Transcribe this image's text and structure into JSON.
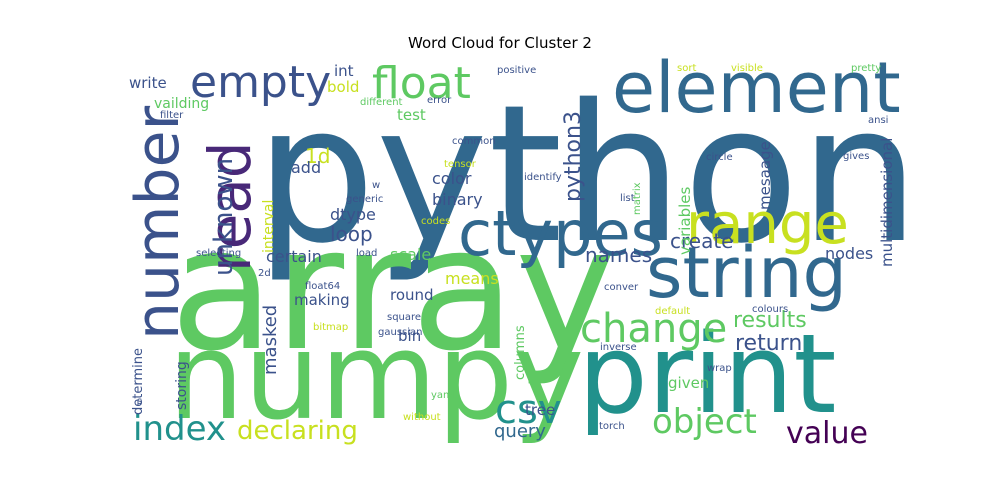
{
  "title": "Word Cloud for Cluster 2",
  "words": [
    {
      "text": "python",
      "size": 190,
      "color": "#31688e"
    },
    {
      "text": "array",
      "size": 170,
      "color": "#5ec962"
    },
    {
      "text": "numpy",
      "size": 120,
      "color": "#5ec962"
    },
    {
      "text": "print",
      "size": 110,
      "color": "#21918c"
    },
    {
      "text": "element",
      "size": 70,
      "color": "#31688e"
    },
    {
      "text": "string",
      "size": 70,
      "color": "#31688e"
    },
    {
      "text": "ctypes",
      "size": 62,
      "color": "#31688e"
    },
    {
      "text": "number",
      "size": 60,
      "color": "#3b528b"
    },
    {
      "text": "read",
      "size": 58,
      "color": "#482878"
    },
    {
      "text": "range",
      "size": 56,
      "color": "#c8e020"
    },
    {
      "text": "float",
      "size": 44,
      "color": "#5ec962"
    },
    {
      "text": "empty",
      "size": 44,
      "color": "#3b528b"
    },
    {
      "text": "change",
      "size": 40,
      "color": "#5ec962"
    },
    {
      "text": "csv",
      "size": 40,
      "color": "#21918c"
    },
    {
      "text": "index",
      "size": 34,
      "color": "#21918c"
    },
    {
      "text": "object",
      "size": 34,
      "color": "#5ec962"
    },
    {
      "text": "value",
      "size": 30,
      "color": "#440154"
    },
    {
      "text": "declaring",
      "size": 26,
      "color": "#c8e020"
    },
    {
      "text": "unknown",
      "size": 26,
      "color": "#3b528b"
    },
    {
      "text": "python3",
      "size": 22,
      "color": "#3b528b"
    },
    {
      "text": "return",
      "size": 22,
      "color": "#3b528b"
    },
    {
      "text": "results",
      "size": 22,
      "color": "#5ec962"
    },
    {
      "text": "create",
      "size": 20,
      "color": "#3b528b"
    },
    {
      "text": "names",
      "size": 20,
      "color": "#3b528b"
    },
    {
      "text": "loop",
      "size": 20,
      "color": "#3b528b"
    },
    {
      "text": "query",
      "size": 18,
      "color": "#31688e"
    },
    {
      "text": "1d",
      "size": 20,
      "color": "#c8e020"
    },
    {
      "text": "masked",
      "size": 18,
      "color": "#3b528b"
    },
    {
      "text": "multidimensional",
      "size": 15,
      "color": "#3b528b"
    },
    {
      "text": "mesaage",
      "size": 15,
      "color": "#3b528b"
    },
    {
      "text": "variables",
      "size": 15,
      "color": "#5ec962"
    },
    {
      "text": "nodes",
      "size": 16,
      "color": "#3b528b"
    },
    {
      "text": "color",
      "size": 16,
      "color": "#3b528b"
    },
    {
      "text": "binary",
      "size": 16,
      "color": "#3b528b"
    },
    {
      "text": "dtype",
      "size": 16,
      "color": "#3b528b"
    },
    {
      "text": "certain",
      "size": 16,
      "color": "#3b528b"
    },
    {
      "text": "scale",
      "size": 16,
      "color": "#5ec962"
    },
    {
      "text": "means",
      "size": 16,
      "color": "#c8e020"
    },
    {
      "text": "making",
      "size": 15,
      "color": "#3b528b"
    },
    {
      "text": "round",
      "size": 15,
      "color": "#3b528b"
    },
    {
      "text": "bin",
      "size": 15,
      "color": "#3b528b"
    },
    {
      "text": "given",
      "size": 15,
      "color": "#5ec962"
    },
    {
      "text": "tree",
      "size": 15,
      "color": "#3b528b"
    },
    {
      "text": "add",
      "size": 16,
      "color": "#3b528b"
    },
    {
      "text": "test",
      "size": 15,
      "color": "#5ec962"
    },
    {
      "text": "bold",
      "size": 15,
      "color": "#c8e020"
    },
    {
      "text": "int",
      "size": 15,
      "color": "#3b528b"
    },
    {
      "text": "write",
      "size": 15,
      "color": "#3b528b"
    },
    {
      "text": "vailding",
      "size": 14,
      "color": "#5ec962"
    },
    {
      "text": "storing",
      "size": 14,
      "color": "#3b528b"
    },
    {
      "text": "determine",
      "size": 13,
      "color": "#3b528b"
    },
    {
      "text": "columns",
      "size": 13,
      "color": "#5ec962"
    },
    {
      "text": "interval",
      "size": 14,
      "color": "#c8e020"
    },
    {
      "text": "positive",
      "size": 10,
      "color": "#3b528b"
    },
    {
      "text": "sort",
      "size": 10,
      "color": "#c8e020"
    },
    {
      "text": "visible",
      "size": 10,
      "color": "#c8e020"
    },
    {
      "text": "pretty",
      "size": 10,
      "color": "#5ec962"
    },
    {
      "text": "error",
      "size": 10,
      "color": "#3b528b"
    },
    {
      "text": "different",
      "size": 10,
      "color": "#5ec962"
    },
    {
      "text": "filter",
      "size": 10,
      "color": "#3b528b"
    },
    {
      "text": "ansi",
      "size": 10,
      "color": "#3b528b"
    },
    {
      "text": "common",
      "size": 10,
      "color": "#3b528b"
    },
    {
      "text": "gives",
      "size": 10,
      "color": "#3b528b"
    },
    {
      "text": "circle",
      "size": 10,
      "color": "#3b528b"
    },
    {
      "text": "tensor",
      "size": 10,
      "color": "#c8e020"
    },
    {
      "text": "identify",
      "size": 10,
      "color": "#3b528b"
    },
    {
      "text": "matrix",
      "size": 10,
      "color": "#5ec962"
    },
    {
      "text": "generic",
      "size": 10,
      "color": "#3b528b"
    },
    {
      "text": "w",
      "size": 10,
      "color": "#3b528b"
    },
    {
      "text": "list",
      "size": 10,
      "color": "#3b528b"
    },
    {
      "text": "codes",
      "size": 10,
      "color": "#c8e020"
    },
    {
      "text": "load",
      "size": 10,
      "color": "#3b528b"
    },
    {
      "text": "selecting",
      "size": 10,
      "color": "#3b528b"
    },
    {
      "text": "2d",
      "size": 10,
      "color": "#3b528b"
    },
    {
      "text": "float64",
      "size": 10,
      "color": "#3b528b"
    },
    {
      "text": "square",
      "size": 10,
      "color": "#3b528b"
    },
    {
      "text": "gaussian",
      "size": 10,
      "color": "#3b528b"
    },
    {
      "text": "bitmap",
      "size": 10,
      "color": "#c8e020"
    },
    {
      "text": "conver",
      "size": 10,
      "color": "#3b528b"
    },
    {
      "text": "default",
      "size": 10,
      "color": "#c8e020"
    },
    {
      "text": "colours",
      "size": 10,
      "color": "#3b528b"
    },
    {
      "text": "inverse",
      "size": 10,
      "color": "#3b528b"
    },
    {
      "text": "wrap",
      "size": 10,
      "color": "#3b528b"
    },
    {
      "text": "yaml",
      "size": 10,
      "color": "#5ec962"
    },
    {
      "text": "without",
      "size": 10,
      "color": "#c8e020"
    },
    {
      "text": "s",
      "size": 10,
      "color": "#3b528b"
    },
    {
      "text": "torch",
      "size": 10,
      "color": "#3b528b"
    }
  ]
}
